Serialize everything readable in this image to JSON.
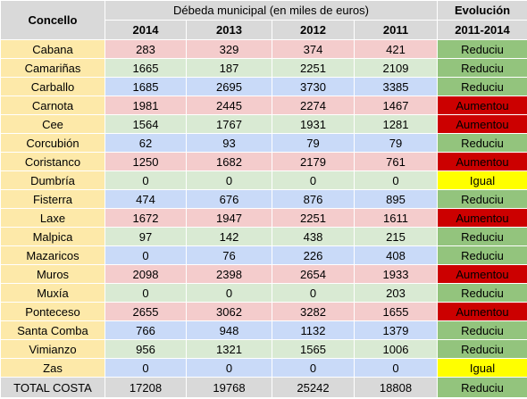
{
  "header": {
    "concello_label": "Concello",
    "debeda_label": "Débeda municipal (en miles de euros)",
    "evolucion_label": "Evolución",
    "evolucion_range": "2011-2014",
    "years": [
      "2014",
      "2013",
      "2012",
      "2011"
    ]
  },
  "rows": [
    {
      "name": "Cabana",
      "v": [
        "283",
        "329",
        "374",
        "421"
      ],
      "ev": "Reduciu",
      "bg": "pink",
      "evc": "reduciu"
    },
    {
      "name": "Camariñas",
      "v": [
        "1665",
        "187",
        "2251",
        "2109"
      ],
      "ev": "Reduciu",
      "bg": "green",
      "evc": "reduciu"
    },
    {
      "name": "Carballo",
      "v": [
        "1685",
        "2695",
        "3730",
        "3385"
      ],
      "ev": "Reduciu",
      "bg": "blue",
      "evc": "reduciu"
    },
    {
      "name": "Carnota",
      "v": [
        "1981",
        "2445",
        "2274",
        "1467"
      ],
      "ev": "Aumentou",
      "bg": "pink",
      "evc": "aumentou"
    },
    {
      "name": "Cee",
      "v": [
        "1564",
        "1767",
        "1931",
        "1281"
      ],
      "ev": "Aumentou",
      "bg": "green",
      "evc": "aumentou"
    },
    {
      "name": "Corcubión",
      "v": [
        "62",
        "93",
        "79",
        "79"
      ],
      "ev": "Reduciu",
      "bg": "blue",
      "evc": "reduciu"
    },
    {
      "name": "Coristanco",
      "v": [
        "1250",
        "1682",
        "2179",
        "761"
      ],
      "ev": "Aumentou",
      "bg": "pink",
      "evc": "aumentou"
    },
    {
      "name": "Dumbría",
      "v": [
        "0",
        "0",
        "0",
        "0"
      ],
      "ev": "Igual",
      "bg": "green",
      "evc": "igual"
    },
    {
      "name": "Fisterra",
      "v": [
        "474",
        "676",
        "876",
        "895"
      ],
      "ev": "Reduciu",
      "bg": "blue",
      "evc": "reduciu"
    },
    {
      "name": "Laxe",
      "v": [
        "1672",
        "1947",
        "2251",
        "1611"
      ],
      "ev": "Aumentou",
      "bg": "pink",
      "evc": "aumentou"
    },
    {
      "name": "Malpica",
      "v": [
        "97",
        "142",
        "438",
        "215"
      ],
      "ev": "Reduciu",
      "bg": "green",
      "evc": "reduciu"
    },
    {
      "name": "Mazaricos",
      "v": [
        "0",
        "76",
        "226",
        "408"
      ],
      "ev": "Reduciu",
      "bg": "blue",
      "evc": "reduciu"
    },
    {
      "name": "Muros",
      "v": [
        "2098",
        "2398",
        "2654",
        "1933"
      ],
      "ev": "Aumentou",
      "bg": "pink",
      "evc": "aumentou"
    },
    {
      "name": "Muxía",
      "v": [
        "0",
        "0",
        "0",
        "203"
      ],
      "ev": "Reduciu",
      "bg": "green",
      "evc": "reduciu"
    },
    {
      "name": "Ponteceso",
      "v": [
        "2655",
        "3062",
        "3282",
        "1655"
      ],
      "ev": "Aumentou",
      "bg": "pink",
      "evc": "aumentou"
    },
    {
      "name": "Santa Comba",
      "v": [
        "766",
        "948",
        "1132",
        "1379"
      ],
      "ev": "Reduciu",
      "bg": "blue",
      "evc": "reduciu"
    },
    {
      "name": "Vimianzo",
      "v": [
        "956",
        "1321",
        "1565",
        "1006"
      ],
      "ev": "Reduciu",
      "bg": "green",
      "evc": "reduciu"
    },
    {
      "name": "Zas",
      "v": [
        "0",
        "0",
        "0",
        "0"
      ],
      "ev": "Igual",
      "bg": "blue",
      "evc": "igual"
    }
  ],
  "total": {
    "name": "TOTAL COSTA",
    "v": [
      "17208",
      "19768",
      "25242",
      "18808"
    ],
    "ev": "Reduciu",
    "evc": "reduciu"
  },
  "colors": {
    "pink": "#f4cccc",
    "green": "#d9ead3",
    "blue": "#c9daf8",
    "name_bg": "#fde9a9",
    "header_bg": "#d9d9d9",
    "reduciu": "#93c47d",
    "aumentou": "#cc0000",
    "igual": "#ffff00"
  }
}
